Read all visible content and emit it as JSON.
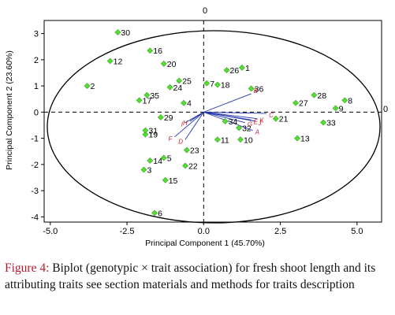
{
  "chart_data": {
    "type": "scatter",
    "xlabel": "Principal Component 1 (45.70%)",
    "ylabel": "Principal Component 2 (23.60%)",
    "xlim": [
      -5.2,
      5.8
    ],
    "ylim": [
      -4.2,
      3.5
    ],
    "x_ticks": [
      "-5.0",
      "-2.5",
      "0.0",
      "2.5",
      "5.0"
    ],
    "y_ticks": [
      "3",
      "2",
      "1",
      "0",
      "-1",
      "-2",
      "-3",
      "-4"
    ],
    "reference_line_labels": {
      "top": "0",
      "right": "0"
    },
    "point_color": "#55dd33",
    "vector_color": "#2233aa",
    "trait_label_color": "#cc2233",
    "points": [
      {
        "label": "1",
        "x": 1.25,
        "y": 1.7
      },
      {
        "label": "2",
        "x": -3.8,
        "y": 1.0
      },
      {
        "label": "3",
        "x": -1.95,
        "y": -2.2
      },
      {
        "label": "4",
        "x": -0.65,
        "y": 0.35
      },
      {
        "label": "5",
        "x": -1.3,
        "y": -1.75
      },
      {
        "label": "6",
        "x": -1.6,
        "y": -3.85
      },
      {
        "label": "7",
        "x": 0.1,
        "y": 1.1
      },
      {
        "label": "8",
        "x": 4.6,
        "y": 0.45
      },
      {
        "label": "9",
        "x": 4.3,
        "y": 0.15
      },
      {
        "label": "10",
        "x": 1.2,
        "y": -1.05
      },
      {
        "label": "11",
        "x": 0.45,
        "y": -1.05
      },
      {
        "label": "12",
        "x": -3.05,
        "y": 1.95
      },
      {
        "label": "13",
        "x": 3.05,
        "y": -1.0
      },
      {
        "label": "14",
        "x": -1.75,
        "y": -1.85
      },
      {
        "label": "15",
        "x": -1.25,
        "y": -2.6
      },
      {
        "label": "16",
        "x": -1.75,
        "y": 2.35
      },
      {
        "label": "17",
        "x": -2.1,
        "y": 0.45
      },
      {
        "label": "18",
        "x": 0.45,
        "y": 1.05
      },
      {
        "label": "19",
        "x": -1.9,
        "y": -0.85
      },
      {
        "label": "20",
        "x": -1.3,
        "y": 1.85
      },
      {
        "label": "21",
        "x": 2.35,
        "y": -0.25
      },
      {
        "label": "22",
        "x": -0.6,
        "y": -2.05
      },
      {
        "label": "23",
        "x": -0.55,
        "y": -1.45
      },
      {
        "label": "24",
        "x": -1.1,
        "y": 0.95
      },
      {
        "label": "25",
        "x": -0.8,
        "y": 1.2
      },
      {
        "label": "26",
        "x": 0.75,
        "y": 1.6
      },
      {
        "label": "27",
        "x": 3.0,
        "y": 0.35
      },
      {
        "label": "28",
        "x": 3.6,
        "y": 0.65
      },
      {
        "label": "29",
        "x": -1.4,
        "y": -0.2
      },
      {
        "label": "30",
        "x": -2.8,
        "y": 3.05
      },
      {
        "label": "31",
        "x": -1.9,
        "y": -0.7
      },
      {
        "label": "32",
        "x": 1.15,
        "y": -0.6
      },
      {
        "label": "33",
        "x": 3.9,
        "y": -0.4
      },
      {
        "label": "34",
        "x": 0.7,
        "y": -0.35
      },
      {
        "label": "35",
        "x": -1.85,
        "y": 0.65
      },
      {
        "label": "36",
        "x": 1.55,
        "y": 0.9
      }
    ],
    "vectors": [
      {
        "label": "B",
        "x": 1.55,
        "y": 0.7
      },
      {
        "label": "C",
        "x": 2.05,
        "y": -0.05
      },
      {
        "label": "K",
        "x": 1.75,
        "y": -0.25
      },
      {
        "label": "J",
        "x": 1.7,
        "y": -0.35
      },
      {
        "label": "E",
        "x": 1.55,
        "y": -0.3
      },
      {
        "label": "G",
        "x": 1.35,
        "y": -0.4
      },
      {
        "label": "A",
        "x": 1.6,
        "y": -0.7
      },
      {
        "label": "H",
        "x": -0.45,
        "y": -0.35
      },
      {
        "label": "I",
        "x": -0.6,
        "y": -0.4
      },
      {
        "label": "F",
        "x": -0.95,
        "y": -0.95
      },
      {
        "label": "D",
        "x": -0.6,
        "y": -1.05
      }
    ]
  },
  "caption": {
    "label": "Figure 4:",
    "text": " Biplot (genotypic × trait association) for fresh shoot length and its attributing traits see section materials and methods for traits description"
  }
}
